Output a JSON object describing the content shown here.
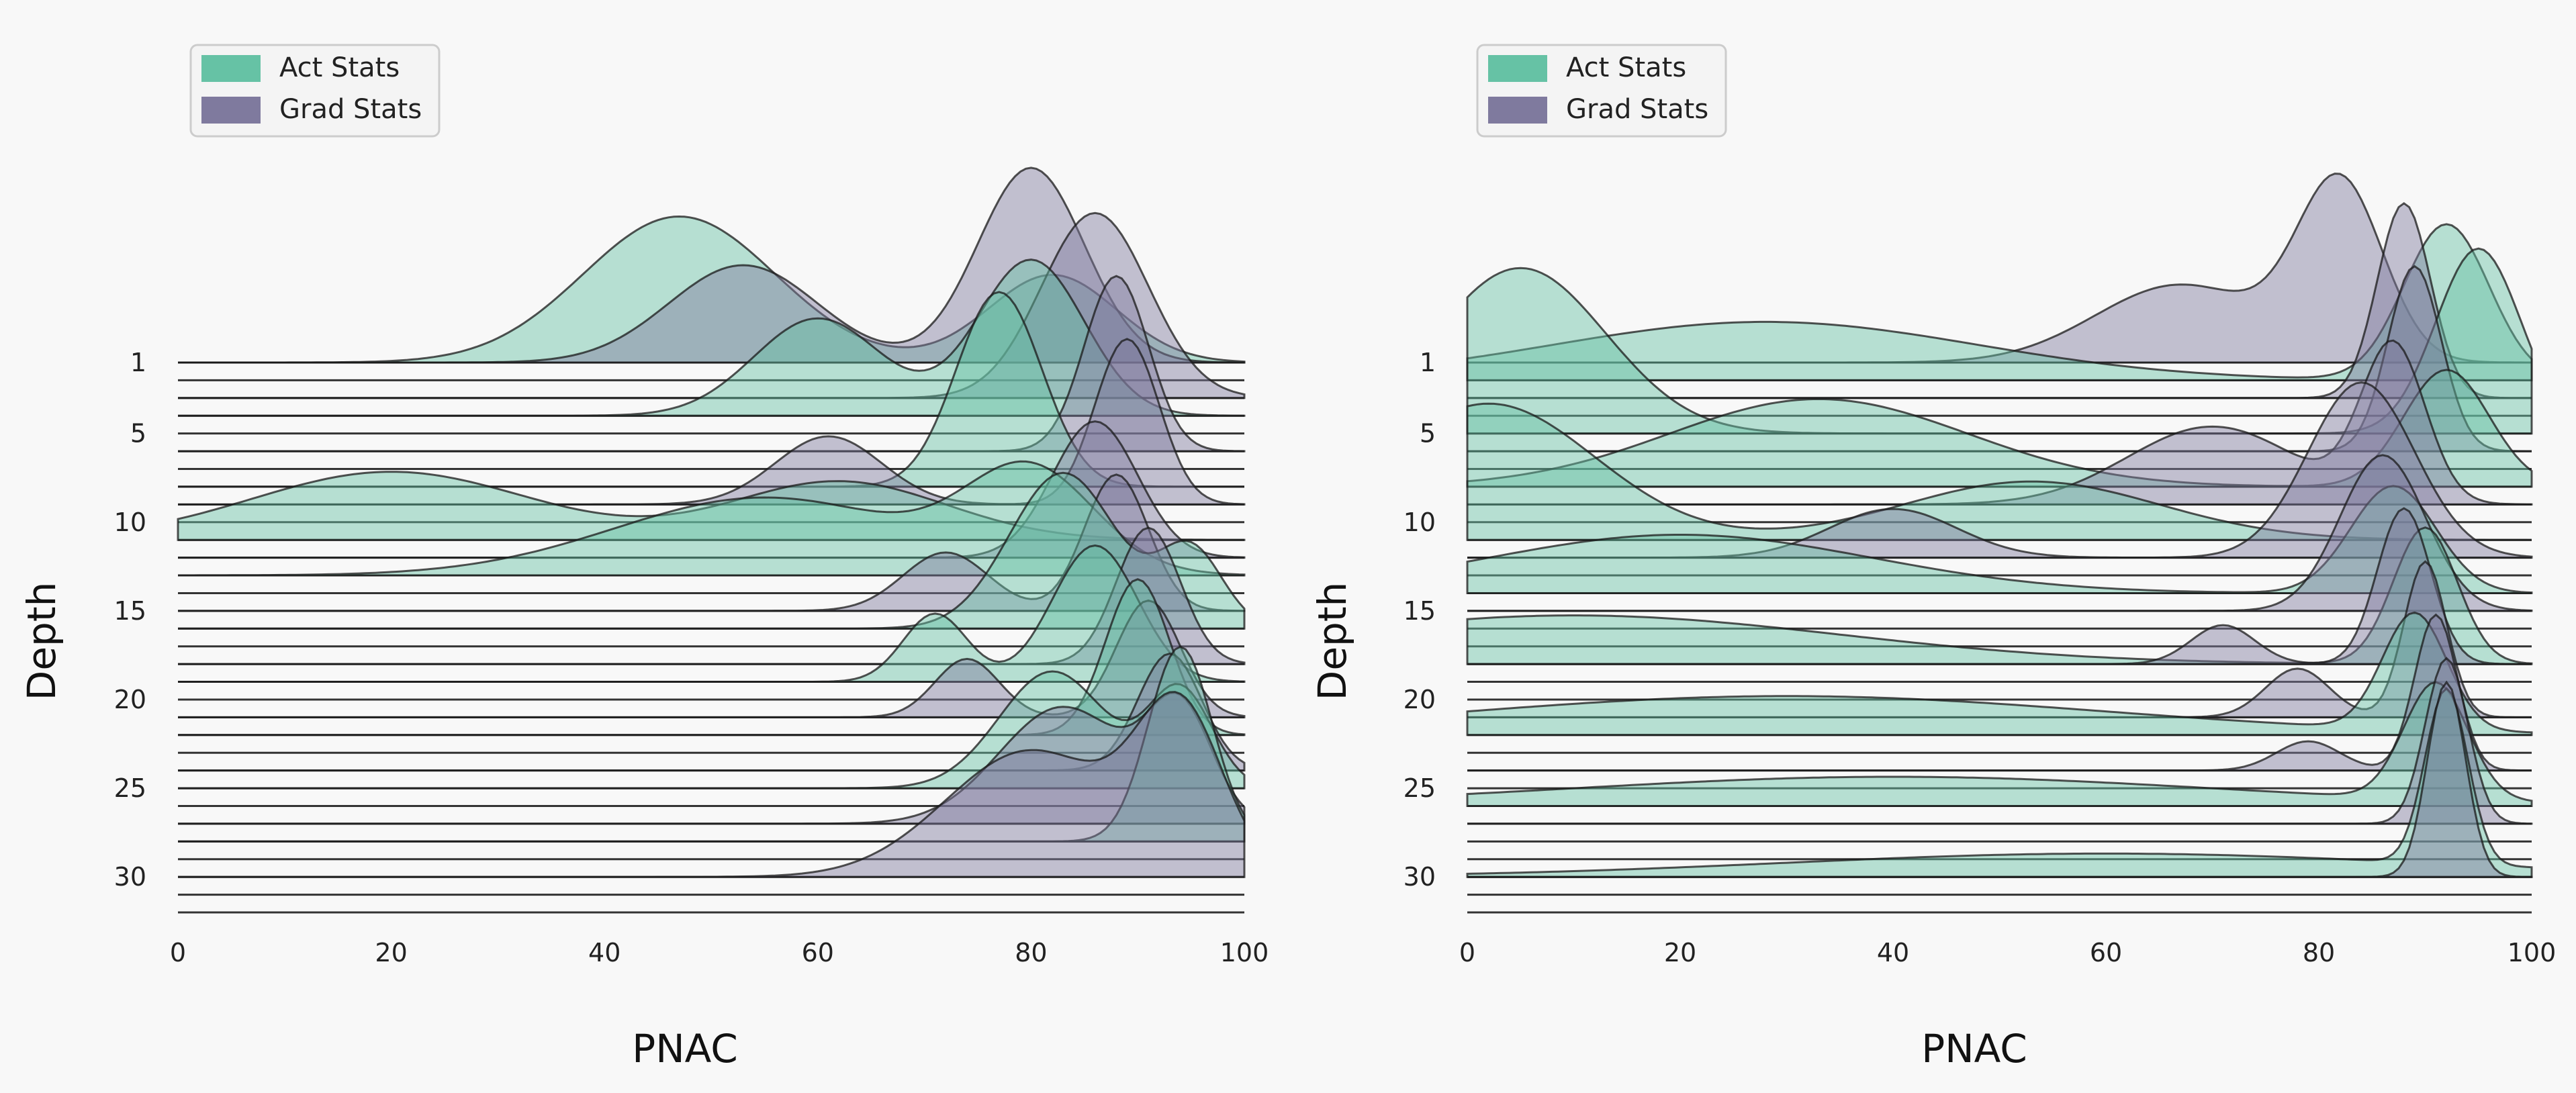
{
  "chart_data": [
    {
      "type": "area",
      "subtype": "ridgeline",
      "xlabel": "PNAC",
      "ylabel": "Depth",
      "xlim": [
        0,
        100
      ],
      "x_ticks": [
        0,
        20,
        40,
        60,
        80,
        100
      ],
      "depth_ticks": [
        1,
        5,
        10,
        15,
        20,
        25,
        30
      ],
      "depth_range": [
        1,
        32
      ],
      "grid": false,
      "legend_position": "top-left",
      "legend": [
        {
          "label": "Act Stats",
          "color": "#66c2a5"
        },
        {
          "label": "Grad Stats",
          "color": "#7f7a9e"
        }
      ],
      "series": [
        {
          "name": "Act Stats",
          "color": "#66c2a5",
          "opacity": 0.45,
          "ridge_peaks": [
            {
              "depth": 1,
              "peaks": [
                [
                  47,
                  9,
                  0.75
                ],
                [
                  82,
                  6,
                  0.45
                ]
              ]
            },
            {
              "depth": 4,
              "peaks": [
                [
                  60,
                  6,
                  0.5
                ],
                [
                  80,
                  5,
                  0.8
                ]
              ]
            },
            {
              "depth": 8,
              "peaks": [
                [
                  77,
                  4,
                  1.0
                ]
              ]
            },
            {
              "depth": 11,
              "peaks": [
                [
                  20,
                  13,
                  0.35
                ],
                [
                  62,
                  10,
                  0.3
                ]
              ]
            },
            {
              "depth": 13,
              "peaks": [
                [
                  55,
                  14,
                  0.4
                ],
                [
                  80,
                  6,
                  0.5
                ]
              ]
            },
            {
              "depth": 16,
              "peaks": [
                [
                  83,
                  5,
                  0.8
                ],
                [
                  95,
                  3,
                  0.4
                ]
              ]
            },
            {
              "depth": 19,
              "peaks": [
                [
                  71,
                  3,
                  0.35
                ],
                [
                  86,
                  4,
                  0.7
                ]
              ]
            },
            {
              "depth": 22,
              "peaks": [
                [
                  90,
                  3,
                  0.8
                ]
              ]
            },
            {
              "depth": 25,
              "peaks": [
                [
                  82,
                  5,
                  0.6
                ],
                [
                  94,
                  3,
                  0.5
                ]
              ]
            },
            {
              "depth": 28,
              "peaks": [
                [
                  94,
                  3,
                  1.0
                ]
              ]
            }
          ]
        },
        {
          "name": "Grad Stats",
          "color": "#7f7a9e",
          "opacity": 0.45,
          "ridge_peaks": [
            {
              "depth": 1,
              "peaks": [
                [
                  53,
                  7,
                  0.5
                ],
                [
                  80,
                  5,
                  1.0
                ]
              ]
            },
            {
              "depth": 3,
              "peaks": [
                [
                  86,
                  5,
                  0.95
                ]
              ]
            },
            {
              "depth": 6,
              "peaks": [
                [
                  88,
                  3,
                  0.9
                ]
              ]
            },
            {
              "depth": 9,
              "peaks": [
                [
                  61,
                  5,
                  0.35
                ],
                [
                  89,
                  3,
                  0.85
                ]
              ]
            },
            {
              "depth": 12,
              "peaks": [
                [
                  86,
                  4,
                  0.7
                ]
              ]
            },
            {
              "depth": 15,
              "peaks": [
                [
                  72,
                  4,
                  0.3
                ],
                [
                  88,
                  3,
                  0.7
                ]
              ]
            },
            {
              "depth": 18,
              "peaks": [
                [
                  91,
                  3,
                  0.7
                ]
              ]
            },
            {
              "depth": 21,
              "peaks": [
                [
                  74,
                  3,
                  0.3
                ],
                [
                  91,
                  3,
                  0.6
                ]
              ]
            },
            {
              "depth": 24,
              "peaks": [
                [
                  93,
                  3,
                  0.6
                ]
              ]
            },
            {
              "depth": 27,
              "peaks": [
                [
                  83,
                  6,
                  0.6
                ],
                [
                  94,
                  3,
                  0.55
                ]
              ]
            },
            {
              "depth": 30,
              "peaks": [
                [
                  80,
                  8,
                  0.65
                ],
                [
                  94,
                  4,
                  0.8
                ]
              ]
            }
          ]
        }
      ]
    },
    {
      "type": "area",
      "subtype": "ridgeline",
      "xlabel": "PNAC",
      "ylabel": "Depth",
      "xlim": [
        0,
        100
      ],
      "x_ticks": [
        0,
        20,
        40,
        60,
        80,
        100
      ],
      "depth_ticks": [
        1,
        5,
        10,
        15,
        20,
        25,
        30
      ],
      "depth_range": [
        1,
        32
      ],
      "grid": false,
      "legend_position": "top-left",
      "legend": [
        {
          "label": "Act Stats",
          "color": "#66c2a5"
        },
        {
          "label": "Grad Stats",
          "color": "#7f7a9e"
        }
      ],
      "series": [
        {
          "name": "Act Stats",
          "color": "#66c2a5",
          "opacity": 0.45,
          "ridge_peaks": [
            {
              "depth": 2,
              "peaks": [
                [
                  28,
                  20,
                  0.3
                ],
                [
                  92,
                  4,
                  0.8
                ]
              ]
            },
            {
              "depth": 5,
              "peaks": [
                [
                  5,
                  8,
                  0.85
                ],
                [
                  95,
                  4,
                  0.95
                ]
              ]
            },
            {
              "depth": 8,
              "peaks": [
                [
                  33,
                  14,
                  0.45
                ],
                [
                  92,
                  4,
                  0.6
                ]
              ]
            },
            {
              "depth": 11,
              "peaks": [
                [
                  2,
                  10,
                  0.7
                ],
                [
                  53,
                  12,
                  0.3
                ]
              ]
            },
            {
              "depth": 14,
              "peaks": [
                [
                  20,
                  18,
                  0.3
                ],
                [
                  87,
                  4,
                  0.55
                ]
              ]
            },
            {
              "depth": 18,
              "peaks": [
                [
                  10,
                  25,
                  0.25
                ],
                [
                  90,
                  3,
                  0.7
                ]
              ]
            },
            {
              "depth": 22,
              "peaks": [
                [
                  30,
                  30,
                  0.2
                ],
                [
                  89,
                  3,
                  0.6
                ]
              ]
            },
            {
              "depth": 26,
              "peaks": [
                [
                  40,
                  30,
                  0.15
                ],
                [
                  91,
                  3,
                  0.6
                ]
              ]
            },
            {
              "depth": 30,
              "peaks": [
                [
                  60,
                  30,
                  0.12
                ],
                [
                  92,
                  2,
                  0.9
                ]
              ]
            }
          ]
        },
        {
          "name": "Grad Stats",
          "color": "#7f7a9e",
          "opacity": 0.45,
          "ridge_peaks": [
            {
              "depth": 1,
              "peaks": [
                [
                  67,
                  8,
                  0.4
                ],
                [
                  82,
                  4,
                  0.9
                ]
              ]
            },
            {
              "depth": 3,
              "peaks": [
                [
                  88,
                  2.5,
                  1.0
                ]
              ]
            },
            {
              "depth": 6,
              "peaks": [
                [
                  89,
                  2.5,
                  0.95
                ]
              ]
            },
            {
              "depth": 9,
              "peaks": [
                [
                  70,
                  8,
                  0.4
                ],
                [
                  87,
                  3,
                  0.8
                ]
              ]
            },
            {
              "depth": 12,
              "peaks": [
                [
                  40,
                  6,
                  0.25
                ],
                [
                  84,
                  5,
                  0.9
                ]
              ]
            },
            {
              "depth": 15,
              "peaks": [
                [
                  86,
                  4,
                  0.8
                ]
              ]
            },
            {
              "depth": 18,
              "peaks": [
                [
                  71,
                  3,
                  0.2
                ],
                [
                  88,
                  2.5,
                  0.8
                ]
              ]
            },
            {
              "depth": 21,
              "peaks": [
                [
                  78,
                  3,
                  0.25
                ],
                [
                  90,
                  2,
                  0.8
                ]
              ]
            },
            {
              "depth": 24,
              "peaks": [
                [
                  79,
                  3,
                  0.15
                ],
                [
                  91,
                  2,
                  0.8
                ]
              ]
            },
            {
              "depth": 27,
              "peaks": [
                [
                  92,
                  2,
                  0.85
                ]
              ]
            },
            {
              "depth": 30,
              "peaks": [
                [
                  92,
                  1.8,
                  1.0
                ]
              ]
            }
          ]
        }
      ]
    }
  ]
}
